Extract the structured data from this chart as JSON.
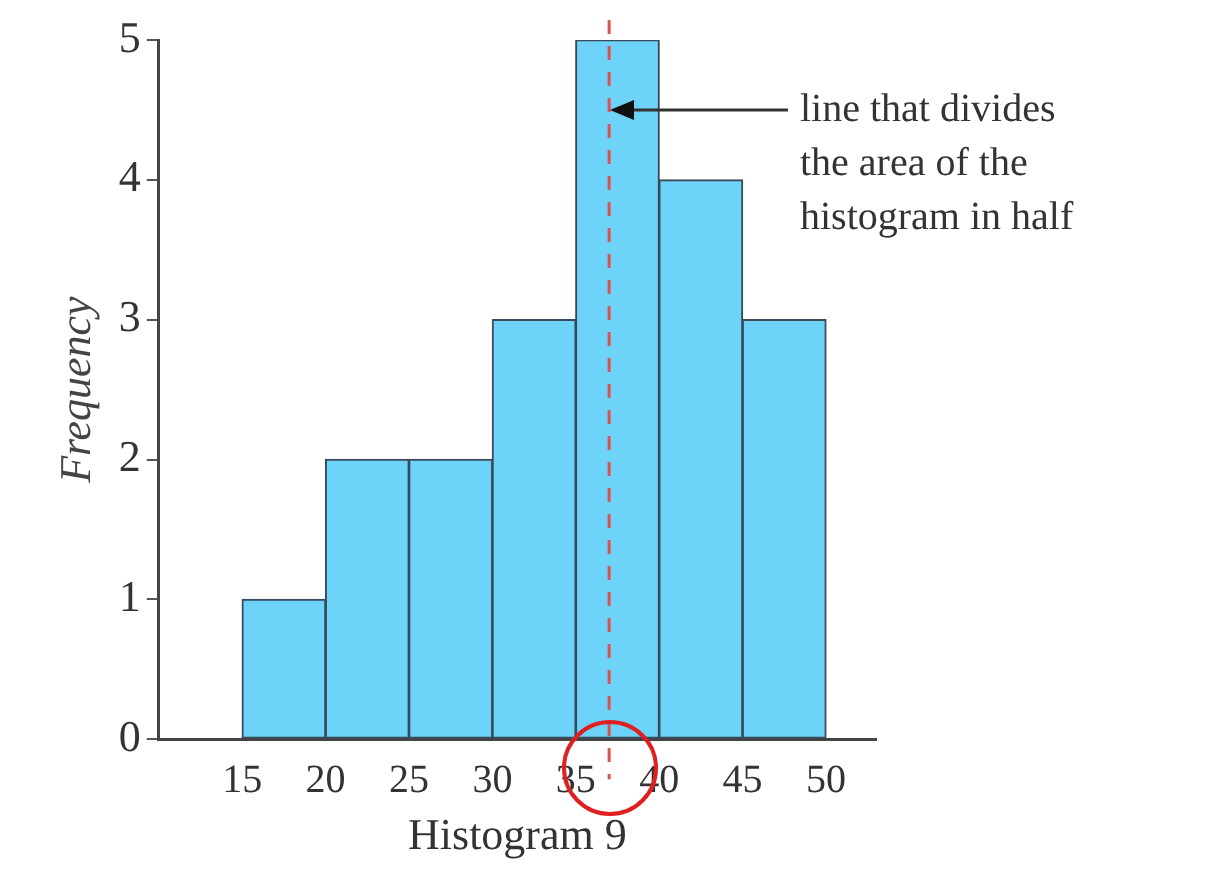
{
  "chart_data": {
    "type": "histogram",
    "xlabel": "Histogram 9",
    "ylabel": "Frequency",
    "bins": [
      15,
      20,
      25,
      30,
      35,
      40,
      45,
      50
    ],
    "values": [
      1,
      2,
      2,
      3,
      5,
      4,
      3
    ],
    "color": "#6dd3f8",
    "xlim": [
      10,
      53
    ],
    "xticks": [
      15,
      20,
      25,
      30,
      35,
      40,
      45,
      50
    ],
    "ylim": [
      0,
      5
    ],
    "yticks": [
      0,
      1,
      2,
      3,
      4,
      5
    ],
    "grid": false,
    "legend": false,
    "ref_lines": [
      {
        "axis": "x",
        "value": 37,
        "color": "#d9534f",
        "line_style": "dashed"
      }
    ],
    "annotations": [
      "line that divides the area of the histogram in half"
    ]
  }
}
